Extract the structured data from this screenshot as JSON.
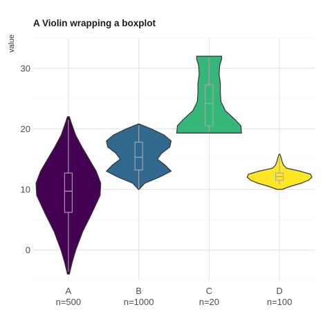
{
  "chart_data": {
    "type": "violin",
    "title": "A Violin wrapping a boxplot",
    "xlabel": "",
    "ylabel": "value",
    "ylim": [
      -5,
      35
    ],
    "yticks": [
      0,
      10,
      20,
      30
    ],
    "grid": true,
    "legend": "none",
    "categories": [
      "A",
      "B",
      "C",
      "D"
    ],
    "category_labels": [
      "A\nn=500",
      "B\nn=1000",
      "C\nn=20",
      "D\nn=100"
    ],
    "colors": [
      "#440154",
      "#31688E",
      "#35B779",
      "#FDE725"
    ],
    "series": [
      {
        "category": "A",
        "count_label": "n=500",
        "n": 500,
        "min": -3.6,
        "q1": 6.2,
        "median": 9.7,
        "q3": 12.7,
        "max": 21.5,
        "density": [
          [
            -4.0,
            0.3
          ],
          [
            -2.0,
            1.2
          ],
          [
            0.0,
            2.3
          ],
          [
            3.0,
            4.4
          ],
          [
            6.0,
            7.2
          ],
          [
            9.0,
            9.8
          ],
          [
            11.0,
            10.0
          ],
          [
            13.0,
            8.6
          ],
          [
            15.0,
            6.4
          ],
          [
            17.0,
            4.2
          ],
          [
            19.0,
            2.2
          ],
          [
            21.0,
            0.9
          ],
          [
            22.0,
            0.3
          ]
        ]
      },
      {
        "category": "B",
        "count_label": "n=1000",
        "n": 1000,
        "min": 10.1,
        "q1": 13.2,
        "median": 15.3,
        "q3": 17.8,
        "max": 20.6,
        "density": [
          [
            10.0,
            0.3
          ],
          [
            11.0,
            4.5
          ],
          [
            12.0,
            15.5
          ],
          [
            13.0,
            24.5
          ],
          [
            14.0,
            20.0
          ],
          [
            15.0,
            14.0
          ],
          [
            16.0,
            17.5
          ],
          [
            17.0,
            23.5
          ],
          [
            18.0,
            24.5
          ],
          [
            19.0,
            19.0
          ],
          [
            20.0,
            9.5
          ],
          [
            20.8,
            0.3
          ]
        ]
      },
      {
        "category": "C",
        "count_label": "n=20",
        "n": 20,
        "min": 19.5,
        "q1": 20.5,
        "median": 24.2,
        "q3": 27.3,
        "max": 31.8,
        "density": [
          [
            19.3,
            26.0
          ],
          [
            20.5,
            25.5
          ],
          [
            21.5,
            21.0
          ],
          [
            23.0,
            13.0
          ],
          [
            24.5,
            9.5
          ],
          [
            26.0,
            9.0
          ],
          [
            27.5,
            9.0
          ],
          [
            29.0,
            8.0
          ],
          [
            30.5,
            8.5
          ],
          [
            31.5,
            10.0
          ],
          [
            32.0,
            10.0
          ]
        ]
      },
      {
        "category": "D",
        "count_label": "n=100",
        "n": 100,
        "min": 10.8,
        "q1": 11.5,
        "median": 12.1,
        "q3": 12.7,
        "max": 15.2,
        "density": [
          [
            10.0,
            4.0
          ],
          [
            10.5,
            16.0
          ],
          [
            11.0,
            31.0
          ],
          [
            11.5,
            42.0
          ],
          [
            12.0,
            47.0
          ],
          [
            12.5,
            45.0
          ],
          [
            13.0,
            30.0
          ],
          [
            13.5,
            10.0
          ],
          [
            14.0,
            6.0
          ],
          [
            14.5,
            4.0
          ],
          [
            15.0,
            3.0
          ],
          [
            15.5,
            1.5
          ],
          [
            15.8,
            0.6
          ]
        ]
      }
    ]
  }
}
